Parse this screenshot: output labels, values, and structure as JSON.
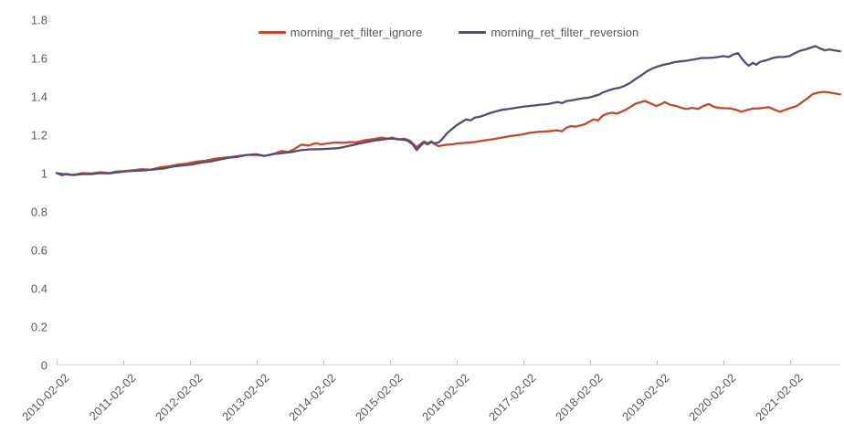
{
  "chart_data": {
    "type": "line",
    "title": "",
    "grid": false,
    "background": "#ffffff",
    "axis_text_color": "#595959",
    "axis_line_color": "#d6d6d6",
    "tick_color": "#bfbfbf",
    "y_axis": {
      "min": 0,
      "max": 1.8,
      "step": 0.2,
      "tick_labels": [
        "0",
        "0.2",
        "0.4",
        "0.6",
        "0.8",
        "1",
        "1.2",
        "1.4",
        "1.6",
        "1.8"
      ]
    },
    "x_axis": {
      "labels": [
        "2010-02-02",
        "2011-02-02",
        "2012-02-02",
        "2013-02-02",
        "2014-02-02",
        "2015-02-02",
        "2016-02-02",
        "2017-02-02",
        "2018-02-02",
        "2019-02-02",
        "2020-02-02",
        "2021-02-02"
      ],
      "domain_years": [
        0,
        11.75
      ]
    },
    "legend": {
      "position": "top",
      "entries": [
        {
          "label": "morning_ret_filter_ignore",
          "color": "#c3492f"
        },
        {
          "label": "morning_ret_filter_reversion",
          "color": "#514e73"
        }
      ]
    },
    "series": [
      {
        "name": "morning_ret_filter_ignore",
        "color": "#c3492f",
        "points": [
          [
            0,
            1.0
          ],
          [
            0.08,
            0.988
          ],
          [
            0.14,
            0.996
          ],
          [
            0.25,
            0.99
          ],
          [
            0.38,
            1.0
          ],
          [
            0.52,
            0.998
          ],
          [
            0.66,
            1.005
          ],
          [
            0.79,
            1.0
          ],
          [
            0.9,
            1.008
          ],
          [
            1.0,
            1.01
          ],
          [
            1.14,
            1.015
          ],
          [
            1.27,
            1.02
          ],
          [
            1.41,
            1.018
          ],
          [
            1.55,
            1.03
          ],
          [
            1.68,
            1.035
          ],
          [
            1.82,
            1.045
          ],
          [
            1.96,
            1.05
          ],
          [
            2.1,
            1.06
          ],
          [
            2.23,
            1.065
          ],
          [
            2.37,
            1.075
          ],
          [
            2.51,
            1.08
          ],
          [
            2.64,
            1.085
          ],
          [
            2.74,
            1.09
          ],
          [
            2.85,
            1.095
          ],
          [
            2.99,
            1.095
          ],
          [
            3.12,
            1.09
          ],
          [
            3.26,
            1.1
          ],
          [
            3.37,
            1.115
          ],
          [
            3.47,
            1.11
          ],
          [
            3.56,
            1.125
          ],
          [
            3.67,
            1.148
          ],
          [
            3.78,
            1.144
          ],
          [
            3.88,
            1.155
          ],
          [
            3.97,
            1.15
          ],
          [
            4.08,
            1.155
          ],
          [
            4.19,
            1.16
          ],
          [
            4.29,
            1.158
          ],
          [
            4.4,
            1.162
          ],
          [
            4.49,
            1.16
          ],
          [
            4.6,
            1.17
          ],
          [
            4.7,
            1.175
          ],
          [
            4.79,
            1.18
          ],
          [
            4.88,
            1.185
          ],
          [
            4.96,
            1.18
          ],
          [
            5.04,
            1.185
          ],
          [
            5.12,
            1.175
          ],
          [
            5.21,
            1.18
          ],
          [
            5.29,
            1.17
          ],
          [
            5.34,
            1.155
          ],
          [
            5.4,
            1.135
          ],
          [
            5.45,
            1.15
          ],
          [
            5.51,
            1.165
          ],
          [
            5.56,
            1.155
          ],
          [
            5.62,
            1.165
          ],
          [
            5.67,
            1.15
          ],
          [
            5.73,
            1.14
          ],
          [
            5.79,
            1.145
          ],
          [
            5.86,
            1.148
          ],
          [
            5.93,
            1.15
          ],
          [
            6.0,
            1.154
          ],
          [
            6.14,
            1.158
          ],
          [
            6.27,
            1.162
          ],
          [
            6.41,
            1.17
          ],
          [
            6.55,
            1.177
          ],
          [
            6.68,
            1.185
          ],
          [
            6.82,
            1.194
          ],
          [
            6.96,
            1.2
          ],
          [
            7.1,
            1.21
          ],
          [
            7.23,
            1.215
          ],
          [
            7.37,
            1.218
          ],
          [
            7.51,
            1.223
          ],
          [
            7.58,
            1.218
          ],
          [
            7.64,
            1.235
          ],
          [
            7.71,
            1.245
          ],
          [
            7.78,
            1.242
          ],
          [
            7.85,
            1.248
          ],
          [
            7.92,
            1.255
          ],
          [
            8.05,
            1.28
          ],
          [
            8.12,
            1.275
          ],
          [
            8.19,
            1.3
          ],
          [
            8.26,
            1.31
          ],
          [
            8.33,
            1.315
          ],
          [
            8.4,
            1.31
          ],
          [
            8.47,
            1.32
          ],
          [
            8.53,
            1.33
          ],
          [
            8.6,
            1.344
          ],
          [
            8.67,
            1.36
          ],
          [
            8.74,
            1.368
          ],
          [
            8.82,
            1.376
          ],
          [
            8.9,
            1.365
          ],
          [
            8.99,
            1.35
          ],
          [
            9.07,
            1.36
          ],
          [
            9.12,
            1.37
          ],
          [
            9.21,
            1.355
          ],
          [
            9.29,
            1.35
          ],
          [
            9.37,
            1.34
          ],
          [
            9.45,
            1.335
          ],
          [
            9.53,
            1.34
          ],
          [
            9.62,
            1.335
          ],
          [
            9.7,
            1.35
          ],
          [
            9.78,
            1.36
          ],
          [
            9.86,
            1.345
          ],
          [
            9.95,
            1.34
          ],
          [
            10.03,
            1.338
          ],
          [
            10.11,
            1.337
          ],
          [
            10.19,
            1.33
          ],
          [
            10.27,
            1.32
          ],
          [
            10.36,
            1.33
          ],
          [
            10.44,
            1.336
          ],
          [
            10.52,
            1.337
          ],
          [
            10.6,
            1.34
          ],
          [
            10.68,
            1.344
          ],
          [
            10.77,
            1.33
          ],
          [
            10.85,
            1.32
          ],
          [
            10.93,
            1.33
          ],
          [
            11.01,
            1.34
          ],
          [
            11.1,
            1.35
          ],
          [
            11.18,
            1.37
          ],
          [
            11.26,
            1.39
          ],
          [
            11.34,
            1.412
          ],
          [
            11.42,
            1.42
          ],
          [
            11.51,
            1.424
          ],
          [
            11.59,
            1.42
          ],
          [
            11.67,
            1.415
          ],
          [
            11.75,
            1.41
          ]
        ]
      },
      {
        "name": "morning_ret_filter_reversion",
        "color": "#514e73",
        "points": [
          [
            0,
            1.0
          ],
          [
            0.11,
            0.995
          ],
          [
            0.25,
            0.99
          ],
          [
            0.38,
            0.995
          ],
          [
            0.52,
            0.995
          ],
          [
            0.66,
            1.0
          ],
          [
            0.79,
            0.998
          ],
          [
            0.93,
            1.005
          ],
          [
            1.07,
            1.01
          ],
          [
            1.21,
            1.012
          ],
          [
            1.34,
            1.015
          ],
          [
            1.48,
            1.02
          ],
          [
            1.62,
            1.025
          ],
          [
            1.75,
            1.035
          ],
          [
            1.89,
            1.04
          ],
          [
            2.03,
            1.045
          ],
          [
            2.16,
            1.055
          ],
          [
            2.3,
            1.06
          ],
          [
            2.44,
            1.07
          ],
          [
            2.58,
            1.08
          ],
          [
            2.71,
            1.085
          ],
          [
            2.85,
            1.095
          ],
          [
            2.99,
            1.098
          ],
          [
            3.12,
            1.09
          ],
          [
            3.26,
            1.1
          ],
          [
            3.4,
            1.105
          ],
          [
            3.53,
            1.11
          ],
          [
            3.67,
            1.12
          ],
          [
            3.81,
            1.124
          ],
          [
            3.95,
            1.125
          ],
          [
            4.08,
            1.127
          ],
          [
            4.22,
            1.13
          ],
          [
            4.36,
            1.14
          ],
          [
            4.49,
            1.15
          ],
          [
            4.63,
            1.16
          ],
          [
            4.77,
            1.17
          ],
          [
            4.88,
            1.175
          ],
          [
            4.99,
            1.18
          ],
          [
            5.1,
            1.178
          ],
          [
            5.18,
            1.175
          ],
          [
            5.26,
            1.17
          ],
          [
            5.34,
            1.15
          ],
          [
            5.4,
            1.12
          ],
          [
            5.45,
            1.14
          ],
          [
            5.51,
            1.16
          ],
          [
            5.56,
            1.15
          ],
          [
            5.62,
            1.162
          ],
          [
            5.67,
            1.155
          ],
          [
            5.73,
            1.16
          ],
          [
            5.79,
            1.18
          ],
          [
            5.86,
            1.21
          ],
          [
            5.93,
            1.23
          ],
          [
            6.0,
            1.25
          ],
          [
            6.07,
            1.265
          ],
          [
            6.14,
            1.28
          ],
          [
            6.21,
            1.275
          ],
          [
            6.27,
            1.289
          ],
          [
            6.36,
            1.295
          ],
          [
            6.44,
            1.305
          ],
          [
            6.52,
            1.315
          ],
          [
            6.6,
            1.323
          ],
          [
            6.68,
            1.33
          ],
          [
            6.77,
            1.334
          ],
          [
            6.85,
            1.338
          ],
          [
            6.93,
            1.343
          ],
          [
            7.01,
            1.347
          ],
          [
            7.1,
            1.35
          ],
          [
            7.23,
            1.355
          ],
          [
            7.37,
            1.36
          ],
          [
            7.51,
            1.37
          ],
          [
            7.58,
            1.365
          ],
          [
            7.64,
            1.375
          ],
          [
            7.73,
            1.38
          ],
          [
            7.81,
            1.385
          ],
          [
            7.89,
            1.39
          ],
          [
            7.97,
            1.393
          ],
          [
            8.05,
            1.4
          ],
          [
            8.14,
            1.41
          ],
          [
            8.19,
            1.42
          ],
          [
            8.27,
            1.43
          ],
          [
            8.36,
            1.44
          ],
          [
            8.44,
            1.445
          ],
          [
            8.52,
            1.455
          ],
          [
            8.6,
            1.47
          ],
          [
            8.68,
            1.49
          ],
          [
            8.77,
            1.51
          ],
          [
            8.85,
            1.53
          ],
          [
            8.93,
            1.545
          ],
          [
            9.01,
            1.555
          ],
          [
            9.1,
            1.565
          ],
          [
            9.18,
            1.57
          ],
          [
            9.26,
            1.578
          ],
          [
            9.34,
            1.582
          ],
          [
            9.42,
            1.585
          ],
          [
            9.51,
            1.59
          ],
          [
            9.59,
            1.595
          ],
          [
            9.67,
            1.6
          ],
          [
            9.75,
            1.6
          ],
          [
            9.84,
            1.602
          ],
          [
            9.92,
            1.605
          ],
          [
            10.0,
            1.61
          ],
          [
            10.08,
            1.605
          ],
          [
            10.16,
            1.62
          ],
          [
            10.22,
            1.625
          ],
          [
            10.27,
            1.6
          ],
          [
            10.33,
            1.575
          ],
          [
            10.38,
            1.56
          ],
          [
            10.44,
            1.575
          ],
          [
            10.49,
            1.565
          ],
          [
            10.55,
            1.58
          ],
          [
            10.6,
            1.585
          ],
          [
            10.66,
            1.59
          ],
          [
            10.74,
            1.6
          ],
          [
            10.82,
            1.605
          ],
          [
            10.9,
            1.605
          ],
          [
            10.99,
            1.61
          ],
          [
            11.07,
            1.625
          ],
          [
            11.15,
            1.638
          ],
          [
            11.23,
            1.645
          ],
          [
            11.32,
            1.655
          ],
          [
            11.38,
            1.662
          ],
          [
            11.45,
            1.65
          ],
          [
            11.52,
            1.64
          ],
          [
            11.59,
            1.645
          ],
          [
            11.66,
            1.64
          ],
          [
            11.75,
            1.635
          ]
        ]
      }
    ]
  }
}
